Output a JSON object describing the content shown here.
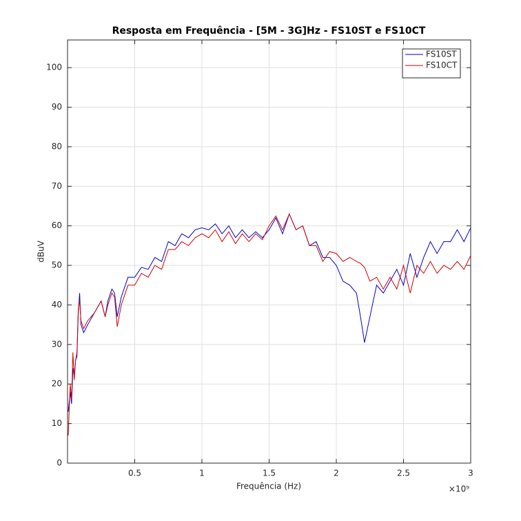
{
  "chart_data": {
    "type": "line",
    "title": "Resposta em Frequência - [5M - 3G]Hz - FS10ST e FS10CT",
    "x_label": "Frequência (Hz)",
    "y_label": "dBuV",
    "x_multiplier": "×10⁹",
    "x": [
      5000000,
      20000000,
      30000000,
      40000000,
      50000000,
      60000000,
      70000000,
      80000000,
      90000000,
      100000000,
      120000000,
      150000000,
      200000000,
      250000000,
      280000000,
      300000000,
      330000000,
      350000000,
      370000000,
      400000000,
      450000000,
      500000000,
      550000000,
      600000000,
      650000000,
      700000000,
      750000000,
      800000000,
      850000000,
      900000000,
      950000000,
      1000000000,
      1050000000,
      1100000000,
      1150000000,
      1200000000,
      1250000000,
      1300000000,
      1350000000,
      1400000000,
      1450000000,
      1500000000,
      1550000000,
      1600000000,
      1650000000,
      1700000000,
      1750000000,
      1800000000,
      1850000000,
      1900000000,
      1950000000,
      2000000000,
      2050000000,
      2100000000,
      2150000000,
      2180000000,
      2210000000,
      2250000000,
      2300000000,
      2350000000,
      2400000000,
      2450000000,
      2500000000,
      2550000000,
      2600000000,
      2650000000,
      2700000000,
      2750000000,
      2800000000,
      2850000000,
      2900000000,
      2950000000,
      3000000000
    ],
    "series": [
      {
        "name": "FS10ST",
        "color": "#0000c8",
        "values": [
          13,
          18,
          15,
          24,
          22,
          26,
          27,
          38,
          43,
          35,
          33,
          35,
          38,
          41,
          37,
          41,
          44,
          43,
          37,
          42,
          47,
          47,
          49.5,
          49,
          52,
          51,
          56,
          55,
          58,
          57,
          59,
          59.5,
          59,
          60.5,
          58,
          60,
          57,
          59,
          57,
          58.5,
          57,
          59,
          62,
          58,
          63,
          59,
          60,
          55,
          56,
          52,
          52,
          50,
          46,
          45,
          43,
          37,
          30.5,
          37,
          45,
          43,
          46,
          49,
          45,
          53,
          47,
          52,
          56,
          53,
          56,
          56,
          59,
          56,
          59.5
        ]
      },
      {
        "name": "FS10CT",
        "color": "#d00000",
        "values": [
          7,
          20,
          16,
          28,
          21,
          26,
          28,
          39,
          41,
          36,
          34,
          36,
          38,
          41,
          37,
          40,
          43,
          42,
          34.5,
          40,
          45,
          45,
          48,
          47,
          50,
          49,
          54,
          54,
          56,
          55,
          57,
          58,
          57,
          59,
          56,
          58.5,
          55.5,
          58,
          56,
          58,
          56.5,
          60,
          62.5,
          59,
          63,
          59,
          60,
          55,
          55,
          51,
          53.5,
          53,
          51,
          52,
          51,
          50.5,
          49.5,
          46,
          47,
          44,
          47,
          44,
          50,
          43,
          50,
          48,
          51,
          48,
          50,
          49,
          51,
          49,
          52.5
        ]
      }
    ],
    "xlim": [
      0,
      3000000000
    ],
    "xticks": [
      {
        "value": 500000000,
        "label": "0.5"
      },
      {
        "value": 1000000000,
        "label": "1"
      },
      {
        "value": 1500000000,
        "label": "1.5"
      },
      {
        "value": 2000000000,
        "label": "2"
      },
      {
        "value": 2500000000,
        "label": "2.5"
      },
      {
        "value": 3000000000,
        "label": "3"
      }
    ],
    "ylim": [
      0,
      107
    ],
    "yticks": [
      0,
      10,
      20,
      30,
      40,
      50,
      60,
      70,
      80,
      90,
      100
    ],
    "grid": true,
    "legend": "northeast"
  }
}
